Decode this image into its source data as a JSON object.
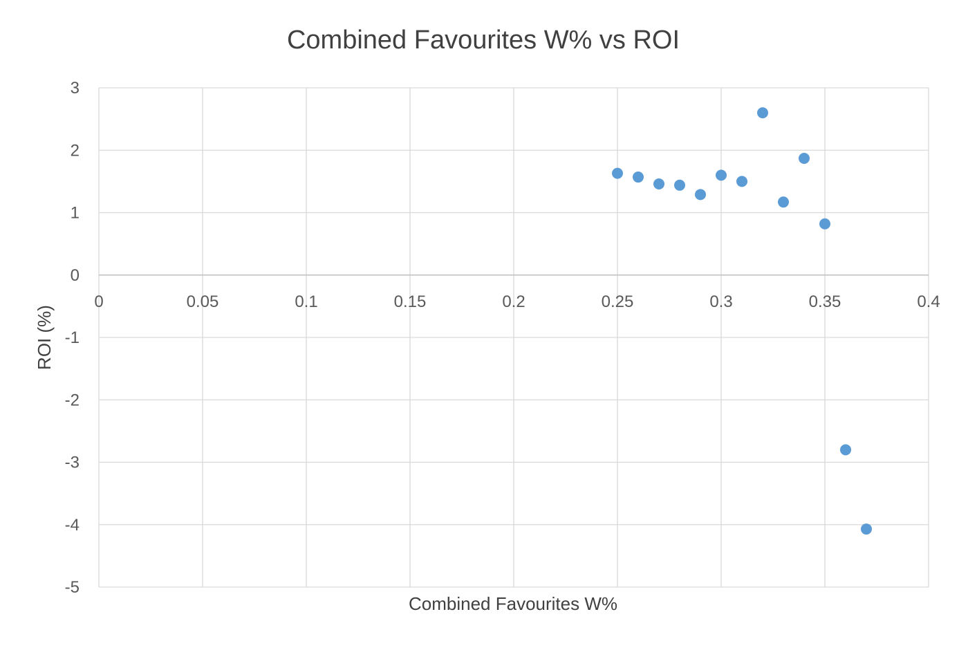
{
  "chart_data": {
    "type": "scatter",
    "title": "Combined Favourites W% vs ROI",
    "xlabel": "Combined Favourites W%",
    "ylabel": "ROI (%)",
    "xlim": [
      0,
      0.4
    ],
    "ylim": [
      -5,
      3
    ],
    "x_ticks": [
      "0",
      "0.05",
      "0.1",
      "0.15",
      "0.2",
      "0.25",
      "0.3",
      "0.35",
      "0.4"
    ],
    "y_ticks": [
      "3",
      "2",
      "1",
      "0",
      "-1",
      "-2",
      "-3",
      "-4",
      "-5"
    ],
    "grid": true,
    "legend": "none",
    "series": [
      {
        "color": "#5b9bd5",
        "points": [
          {
            "x": 0.25,
            "y": 1.63
          },
          {
            "x": 0.26,
            "y": 1.57
          },
          {
            "x": 0.27,
            "y": 1.46
          },
          {
            "x": 0.28,
            "y": 1.44
          },
          {
            "x": 0.29,
            "y": 1.29
          },
          {
            "x": 0.3,
            "y": 1.6
          },
          {
            "x": 0.31,
            "y": 1.5
          },
          {
            "x": 0.32,
            "y": 2.6
          },
          {
            "x": 0.33,
            "y": 1.17
          },
          {
            "x": 0.34,
            "y": 1.87
          },
          {
            "x": 0.35,
            "y": 0.82
          },
          {
            "x": 0.36,
            "y": -2.8
          },
          {
            "x": 0.37,
            "y": -4.07
          }
        ]
      }
    ]
  }
}
